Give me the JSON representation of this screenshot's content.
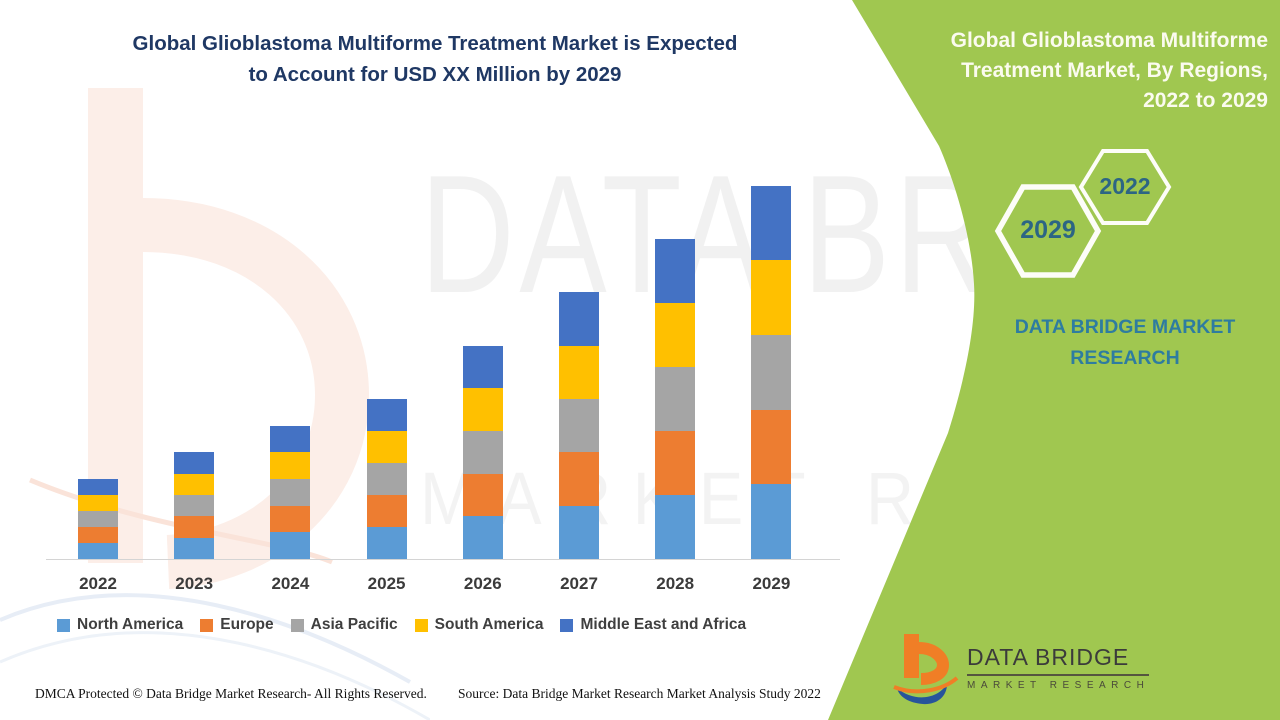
{
  "header": {
    "title_line1": "Global Glioblastoma Multiforme Treatment Market is Expected",
    "title_line2": "to Account for USD XX Million by 2029"
  },
  "side_panel": {
    "title_line1": "Global Glioblastoma Multiforme",
    "title_line2": "Treatment Market, By Regions,",
    "title_line3": "2022 to 2029",
    "hexagon_top_year": "2022",
    "hexagon_bottom_year": "2029",
    "brand_line1": "DATA BRIDGE MARKET",
    "brand_line2": "RESEARCH"
  },
  "watermark": {
    "line1": "DATA BRIDGE",
    "line2": "MARKET RESEARCH"
  },
  "logo": {
    "name": "DATA BRIDGE",
    "subtitle": "MARKET RESEARCH"
  },
  "footer": {
    "left": "DMCA Protected © Data Bridge Market Research- All Rights Reserved.",
    "right": "Source: Data Bridge Market Research Market Analysis Study 2022"
  },
  "colors": {
    "green_panel": "#A0C750",
    "title_navy": "#1F3864",
    "side_title_white": "#FBFBEF",
    "teal_text": "#2E7CA0",
    "hex_year_text": "#2C6584",
    "axis_line": "#D4D4D4",
    "north_america": "#5B9BD5",
    "europe": "#ED7D31",
    "asia_pacific": "#A5A5A5",
    "south_america": "#FFC000",
    "middle_east_africa": "#4472C4",
    "logo_orange": "#F07E26",
    "logo_blue": "#27549B"
  },
  "chart_data": {
    "type": "bar",
    "stacked": true,
    "title": "Global Glioblastoma Multiforme Treatment Market, By Regions, 2022 to 2029",
    "xlabel": "",
    "ylabel": "",
    "y_axis_visible": false,
    "grid": false,
    "legend_position": "bottom",
    "units": "relative units (market value shown as USD XX Million, axis unlabeled)",
    "categories": [
      "2022",
      "2023",
      "2024",
      "2025",
      "2026",
      "2027",
      "2028",
      "2029"
    ],
    "series": [
      {
        "name": "North America",
        "color": "#5B9BD5",
        "values": [
          3,
          4,
          5,
          6,
          8,
          10,
          12,
          14
        ]
      },
      {
        "name": "Europe",
        "color": "#ED7D31",
        "values": [
          3,
          4,
          5,
          6,
          8,
          10,
          12,
          14
        ]
      },
      {
        "name": "Asia Pacific",
        "color": "#A5A5A5",
        "values": [
          3,
          4,
          5,
          6,
          8,
          10,
          12,
          14
        ]
      },
      {
        "name": "South America",
        "color": "#FFC000",
        "values": [
          3,
          4,
          5,
          6,
          8,
          10,
          12,
          14
        ]
      },
      {
        "name": "Middle East and Africa",
        "color": "#4472C4",
        "values": [
          3,
          4,
          5,
          6,
          8,
          10,
          12,
          14
        ]
      }
    ],
    "stack_totals": [
      15,
      20,
      25,
      30,
      40,
      50,
      60,
      70
    ]
  }
}
